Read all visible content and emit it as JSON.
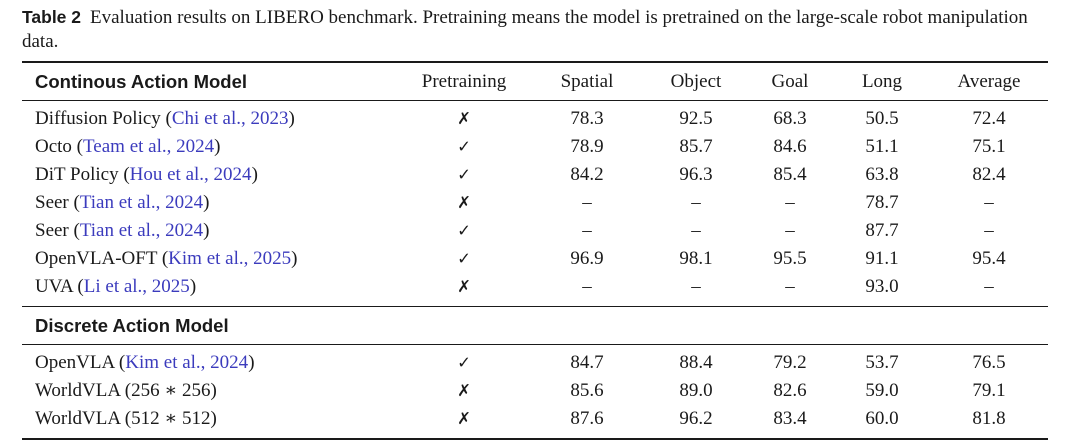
{
  "caption": {
    "label": "Table 2",
    "text": "Evaluation results on LIBERO benchmark. Pretraining means the model is pretrained on the large-scale robot manipulation data."
  },
  "colors": {
    "text": "#1a1a1a",
    "citation": "#3b3bbd"
  },
  "table": {
    "columns": [
      "Pretraining",
      "Spatial",
      "Object",
      "Goal",
      "Long",
      "Average"
    ],
    "sections": [
      {
        "header": "Continous Action Model",
        "rows": [
          {
            "pre": "Diffusion Policy (",
            "cite": "Chi et al., 2023",
            "post": ")",
            "mark": "✗",
            "values": [
              "78.3",
              "92.5",
              "68.3",
              "50.5",
              "72.4"
            ]
          },
          {
            "pre": "Octo (",
            "cite": "Team et al., 2024",
            "post": ")",
            "mark": "✓",
            "values": [
              "78.9",
              "85.7",
              "84.6",
              "51.1",
              "75.1"
            ]
          },
          {
            "pre": "DiT Policy (",
            "cite": "Hou et al., 2024",
            "post": ")",
            "mark": "✓",
            "values": [
              "84.2",
              "96.3",
              "85.4",
              "63.8",
              "82.4"
            ]
          },
          {
            "pre": "Seer (",
            "cite": "Tian et al., 2024",
            "post": ")",
            "mark": "✗",
            "values": [
              "–",
              "–",
              "–",
              "78.7",
              "–"
            ]
          },
          {
            "pre": "Seer (",
            "cite": "Tian et al., 2024",
            "post": ")",
            "mark": "✓",
            "values": [
              "–",
              "–",
              "–",
              "87.7",
              "–"
            ]
          },
          {
            "pre": "OpenVLA-OFT (",
            "cite": "Kim et al., 2025",
            "post": ")",
            "mark": "✓",
            "values": [
              "96.9",
              "98.1",
              "95.5",
              "91.1",
              "95.4"
            ]
          },
          {
            "pre": "UVA (",
            "cite": "Li et al., 2025",
            "post": ")",
            "mark": "✗",
            "values": [
              "–",
              "–",
              "–",
              "93.0",
              "–"
            ]
          }
        ]
      },
      {
        "header": "Discrete Action Model",
        "rows": [
          {
            "pre": "OpenVLA (",
            "cite": "Kim et al., 2024",
            "post": ")",
            "mark": "✓",
            "values": [
              "84.7",
              "88.4",
              "79.2",
              "53.7",
              "76.5"
            ]
          },
          {
            "pre": "WorldVLA (256 ∗ 256)",
            "cite": "",
            "post": "",
            "mark": "✗",
            "values": [
              "85.6",
              "89.0",
              "82.6",
              "59.0",
              "79.1"
            ]
          },
          {
            "pre": "WorldVLA (512 ∗ 512)",
            "cite": "",
            "post": "",
            "mark": "✗",
            "values": [
              "87.6",
              "96.2",
              "83.4",
              "60.0",
              "81.8"
            ]
          }
        ]
      }
    ]
  }
}
